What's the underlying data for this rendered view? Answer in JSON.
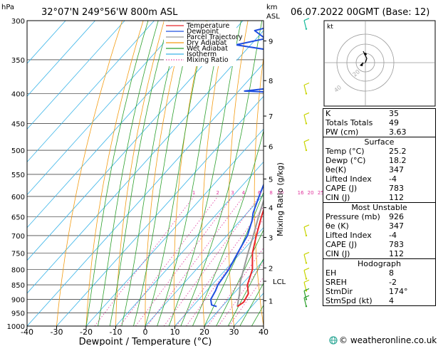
{
  "header": {
    "location": "32°07'N  249°56'W  800m  ASL",
    "datetime": "06.07.2022  00GMT  (Base: 12)",
    "hpa_label": "hPa",
    "km_label": "km",
    "asl_label": "ASL",
    "credit": "© weatheronline.co.uk"
  },
  "chart_data": {
    "type": "line",
    "xlabel": "Dewpoint / Temperature (°C)",
    "ylabel": "hPa",
    "y2label": "Mixing Ratio (g/kg)",
    "xlim": [
      -40,
      40
    ],
    "ylim": [
      1000,
      300
    ],
    "yscale": "log",
    "x_ticks": [
      -40,
      -30,
      -20,
      -10,
      0,
      10,
      20,
      30,
      40
    ],
    "pressure_ticks": [
      300,
      350,
      400,
      450,
      500,
      550,
      600,
      650,
      700,
      750,
      800,
      850,
      900,
      950,
      1000
    ],
    "km_ticks": [
      {
        "label": "1",
        "p": 905
      },
      {
        "label": "2",
        "p": 795
      },
      {
        "label": "3",
        "p": 705
      },
      {
        "label": "4",
        "p": 627
      },
      {
        "label": "5",
        "p": 560
      },
      {
        "label": "6",
        "p": 492
      },
      {
        "label": "7",
        "p": 437
      },
      {
        "label": "8",
        "p": 380
      },
      {
        "label": "9",
        "p": 325
      }
    ],
    "lcl": {
      "label": "LCL",
      "p": 838
    },
    "mixing_ratio_labels": [
      "1",
      "2",
      "3",
      "4",
      "6",
      "8",
      "10",
      "16",
      "20",
      "25"
    ],
    "legend": [
      "Temperature",
      "Dewpoint",
      "Parcel Trajectory",
      "Dry Adiabat",
      "Wet Adiabat",
      "Isotherm",
      "Mixing Ratio"
    ],
    "series": [
      {
        "name": "Temperature",
        "points": [
          [
            25.2,
            926
          ],
          [
            26,
            910
          ],
          [
            25,
            880
          ],
          [
            22,
            850
          ],
          [
            19,
            800
          ],
          [
            14,
            750
          ],
          [
            10,
            700
          ],
          [
            6,
            650
          ],
          [
            2,
            600
          ],
          [
            -3,
            550
          ],
          [
            -8,
            500
          ],
          [
            -13,
            460
          ],
          [
            -17,
            430
          ],
          [
            -21,
            400
          ],
          [
            -25,
            370
          ],
          [
            -30,
            350
          ],
          [
            -33,
            330
          ],
          [
            -38,
            300
          ]
        ]
      },
      {
        "name": "Dewpoint",
        "points": [
          [
            18.2,
            926
          ],
          [
            16,
            920
          ],
          [
            14,
            900
          ],
          [
            13,
            870
          ],
          [
            12,
            850
          ],
          [
            11,
            800
          ],
          [
            9,
            750
          ],
          [
            7,
            700
          ],
          [
            4,
            660
          ],
          [
            2,
            640
          ],
          [
            -1,
            600
          ],
          [
            -4,
            560
          ],
          [
            -6,
            520
          ],
          [
            -8,
            500
          ],
          [
            -10,
            480
          ],
          [
            -12,
            460
          ],
          [
            -14,
            450
          ],
          [
            -16,
            430
          ],
          [
            -17,
            420
          ],
          [
            -21,
            405
          ],
          [
            -28,
            398
          ],
          [
            -38,
            396
          ],
          [
            -31,
            392
          ],
          [
            -24,
            388
          ],
          [
            -20,
            380
          ],
          [
            -26,
            365
          ],
          [
            -28,
            350
          ],
          [
            -30,
            343
          ],
          [
            -42,
            337
          ],
          [
            -55,
            330
          ],
          [
            -47,
            322
          ],
          [
            -53,
            312
          ],
          [
            -47,
            305
          ],
          [
            -53,
            300
          ]
        ]
      },
      {
        "name": "Parcel Trajectory",
        "points": [
          [
            25.2,
            926
          ],
          [
            22,
            880
          ],
          [
            18.5,
            838
          ],
          [
            16,
            800
          ],
          [
            12.5,
            750
          ],
          [
            9,
            700
          ],
          [
            5,
            650
          ],
          [
            1,
            600
          ],
          [
            -4,
            550
          ],
          [
            -9,
            500
          ],
          [
            -14,
            460
          ],
          [
            -20,
            420
          ],
          [
            -26,
            385
          ],
          [
            -31,
            360
          ]
        ]
      }
    ],
    "hodograph": {
      "label": "kt",
      "ring_labels": [
        "20",
        "40"
      ]
    }
  },
  "info": {
    "k_label": "K",
    "k": "35",
    "tt_label": "Totals Totals",
    "tt": "49",
    "pw_label": "PW (cm)",
    "pw": "3.63",
    "surface": {
      "title": "Surface",
      "temp_label": "Temp (°C)",
      "temp": "25.2",
      "dewp_label": "Dewp (°C)",
      "dewp": "18.2",
      "theta_label": "θe(K)",
      "theta": "347",
      "li_label": "Lifted Index",
      "li": "-4",
      "cape_label": "CAPE (J)",
      "cape": "783",
      "cin_label": "CIN (J)",
      "cin": "112"
    },
    "unstable": {
      "title": "Most Unstable",
      "pres_label": "Pressure (mb)",
      "pres": "926",
      "theta_label": "θe (K)",
      "theta": "347",
      "li_label": "Lifted Index",
      "li": "-4",
      "cape_label": "CAPE (J)",
      "cape": "783",
      "cin_label": "CIN (J)",
      "cin": "112"
    },
    "hodograph": {
      "title": "Hodograph",
      "eh_label": "EH",
      "eh": "8",
      "srh_label": "SREH",
      "srh": "-2",
      "dir_label": "StmDir",
      "dir": "174°",
      "spd_label": "StmSpd (kt)",
      "spd": "4"
    }
  }
}
